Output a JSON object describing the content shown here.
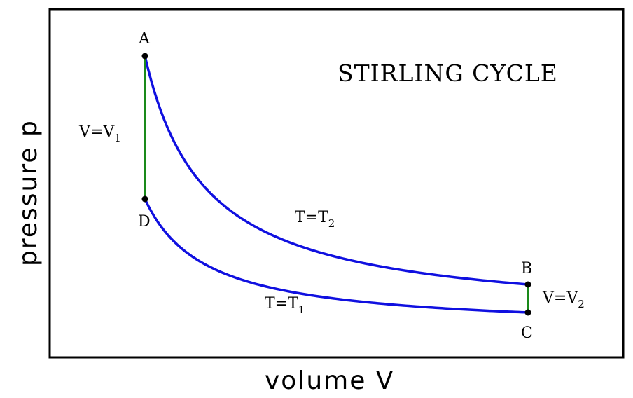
{
  "title": "STIRLING CYCLE",
  "xlabel": "volume V",
  "ylabel": "pressure p",
  "points": {
    "A": "A",
    "B": "B",
    "C": "C",
    "D": "D"
  },
  "labels": {
    "v1": {
      "main": "V=V",
      "sub": "1"
    },
    "v2": {
      "main": "V=V",
      "sub": "2"
    },
    "t1": {
      "main": "T=T",
      "sub": "1"
    },
    "t2": {
      "main": "T=T",
      "sub": "2"
    }
  },
  "colors": {
    "isotherm": "#1010e0",
    "isochore": "#1a8a1a",
    "frame": "#000000"
  }
}
